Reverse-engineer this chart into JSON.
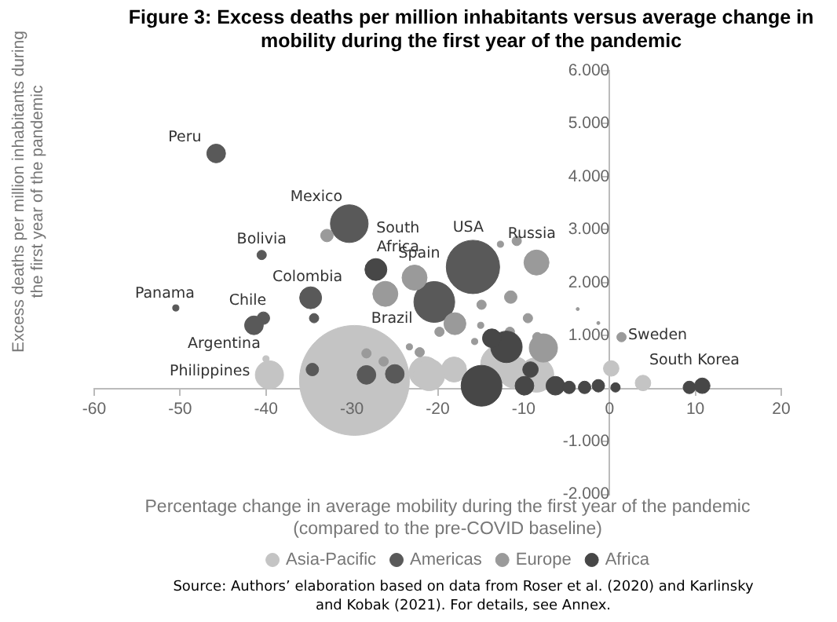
{
  "chart_data": {
    "type": "bubble",
    "title": "Figure 3: Excess deaths per million inhabitants versus average change in mobility during the first year of the pandemic",
    "xlabel": "Percentage change in average mobility during the first year of the pandemic (compared to the pre-COVID baseline)",
    "ylabel": "Excess deaths per million inhabitants during the first year of the pandemic",
    "xlim": [
      -60,
      20
    ],
    "xticks": [
      -60,
      -50,
      -40,
      -30,
      -20,
      -10,
      0,
      10,
      20
    ],
    "ylim": [
      -2000,
      6000
    ],
    "yticks": [
      {
        "value": -2000,
        "label": "-2.000"
      },
      {
        "value": -1000,
        "label": "-1.000"
      },
      {
        "value": 1000,
        "label": "1.000"
      },
      {
        "value": 2000,
        "label": "2.000"
      },
      {
        "value": 3000,
        "label": "3.000"
      },
      {
        "value": 4000,
        "label": "4.000"
      },
      {
        "value": 5000,
        "label": "5.000"
      },
      {
        "value": 6000,
        "label": "6.000"
      }
    ],
    "grid": false,
    "legend": "bottom",
    "series": [
      {
        "name": "Asia-Pacific",
        "color": "#c4c4c4",
        "x": [
          -29.7,
          -39.6,
          0.2,
          3.9,
          -40,
          -21.5,
          -11.1,
          -8.5,
          -18.1,
          -21,
          -12.8
        ],
        "values": [
          153,
          257,
          379,
          104,
          560,
          306,
          306,
          257,
          358,
          257,
          459
        ],
        "sizes": [
          1,
          0.066,
          0.02,
          0.02,
          0.0033,
          0.082,
          0.082,
          0.099,
          0.052,
          0.082,
          0.118
        ]
      },
      {
        "name": "Americas",
        "color": "#595959",
        "x": [
          -45.8,
          -30.3,
          -40.5,
          -50.5,
          -34.8,
          -40.3,
          -41.4,
          -20.4,
          -15.9,
          -34.4,
          -28.3,
          -25,
          -34.6
        ],
        "values": [
          4437,
          3112,
          2521,
          1521,
          1713,
          1328,
          1193,
          1634,
          2295,
          1328,
          257,
          275,
          358
        ],
        "sizes": [
          0.029,
          0.118,
          0.0073,
          0.0033,
          0.04,
          0.013,
          0.029,
          0.138,
          0.236,
          0.0073,
          0.029,
          0.029,
          0.013
        ]
      },
      {
        "name": "Europe",
        "color": "#9a9a9a",
        "x": [
          -32.9,
          -8.5,
          1.4,
          -22.7,
          -26.1,
          -12.7,
          -10.8,
          -11.5,
          -14.9,
          -18,
          -15,
          -9.5,
          -11.6,
          -8.4,
          -7.7,
          -15.7,
          -3.7,
          -1.3,
          -19.8,
          -23.3,
          -22.1,
          -26.3,
          -28.3
        ],
        "values": [
          2888,
          2378,
          970,
          2093,
          1787,
          2724,
          2785,
          1726,
          1582,
          1224,
          1193,
          1328,
          1071,
          970,
          765,
          887,
          1500,
          1236,
          1071,
          786,
          685,
          511,
          664
        ],
        "sizes": [
          0.013,
          0.052,
          0.0073,
          0.052,
          0.052,
          0.0033,
          0.0073,
          0.013,
          0.0073,
          0.04,
          0.0033,
          0.0073,
          0.0073,
          0.0073,
          0.066,
          0.0033,
          0.0008,
          0.0008,
          0.0073,
          0.0033,
          0.0073,
          0.0073,
          0.0073
        ]
      },
      {
        "name": "Africa",
        "color": "#474747",
        "x": [
          -27.2,
          -12,
          -13.7,
          -9.9,
          -6.3,
          -4.7,
          -2.9,
          -1.3,
          0.7,
          9.3,
          10.8,
          -9.2,
          -14.9
        ],
        "values": [
          2246,
          786,
          949,
          52,
          52,
          21,
          21,
          52,
          21,
          21,
          52,
          358,
          52
        ],
        "sizes": [
          0.04,
          0.082,
          0.029,
          0.029,
          0.029,
          0.013,
          0.013,
          0.013,
          0.0073,
          0.013,
          0.02,
          0.02,
          0.138
        ]
      }
    ],
    "annotations": [
      {
        "text": "Peru",
        "x": -45.8,
        "y": 4437
      },
      {
        "text": "Mexico",
        "x": -30.3,
        "y": 3112
      },
      {
        "text": "South Africa",
        "x": -27.2,
        "y": 2246
      },
      {
        "text": "Spain",
        "x": -22.7,
        "y": 2093
      },
      {
        "text": "Bolivia",
        "x": -40.5,
        "y": 2521
      },
      {
        "text": "Colombia",
        "x": -34.8,
        "y": 1713
      },
      {
        "text": "Panama",
        "x": -50.5,
        "y": 1521
      },
      {
        "text": "Chile",
        "x": -40.3,
        "y": 1328
      },
      {
        "text": "Argentina",
        "x": -41.4,
        "y": 1193
      },
      {
        "text": "Philippines",
        "x": -39.6,
        "y": 257
      },
      {
        "text": "Brazil",
        "x": -20.4,
        "y": 1634
      },
      {
        "text": "USA",
        "x": -15.9,
        "y": 2295
      },
      {
        "text": "Russia",
        "x": -8.5,
        "y": 2378
      },
      {
        "text": "Sweden",
        "x": 1.4,
        "y": 970
      },
      {
        "text": "South Korea",
        "x": 0.2,
        "y": 379
      },
      "Source: Authors’ elaboration based on data from Roser et al. (2020) and Karlinsky and Kobak (2021). For details, see Annex."
    ]
  }
}
